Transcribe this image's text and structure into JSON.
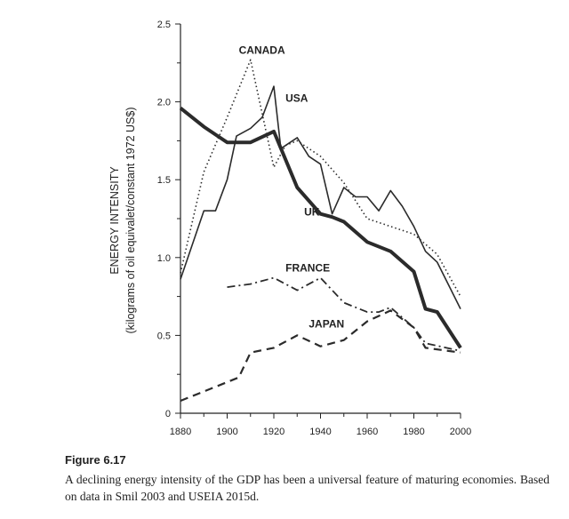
{
  "chart_data": {
    "type": "line",
    "ylabel_line1": "ENERGY INTENSITY",
    "ylabel_line2": "(kilograms of oil equivalet/constant 1972 US$)",
    "xlim": [
      1880,
      2000
    ],
    "ylim": [
      0,
      2.5
    ],
    "xticks": [
      "1880",
      "1900",
      "1920",
      "1940",
      "1960",
      "1980",
      "2000"
    ],
    "yticks": [
      "0",
      "0.5",
      "1.0",
      "1.5",
      "2.0",
      "2.5"
    ],
    "grid": false,
    "series": [
      {
        "name": "CANADA",
        "style": "dotted",
        "x": [
          1880,
          1890,
          1900,
          1910,
          1920,
          1925,
          1930,
          1940,
          1950,
          1960,
          1970,
          1980,
          1990,
          2000
        ],
        "y": [
          0.9,
          1.55,
          1.9,
          2.27,
          1.58,
          1.72,
          1.75,
          1.65,
          1.48,
          1.25,
          1.2,
          1.15,
          1.02,
          0.75
        ]
      },
      {
        "name": "USA",
        "style": "solid-thin",
        "x": [
          1880,
          1890,
          1895,
          1900,
          1904,
          1910,
          1915,
          1920,
          1923,
          1930,
          1935,
          1940,
          1945,
          1950,
          1955,
          1960,
          1965,
          1970,
          1975,
          1980,
          1985,
          1990,
          2000
        ],
        "y": [
          0.86,
          1.3,
          1.3,
          1.5,
          1.78,
          1.83,
          1.9,
          2.1,
          1.7,
          1.77,
          1.65,
          1.6,
          1.28,
          1.45,
          1.39,
          1.39,
          1.3,
          1.43,
          1.33,
          1.2,
          1.04,
          0.97,
          0.67
        ]
      },
      {
        "name": "UK",
        "style": "solid-thick",
        "x": [
          1880,
          1890,
          1900,
          1910,
          1920,
          1930,
          1940,
          1945,
          1950,
          1960,
          1970,
          1980,
          1985,
          1990,
          2000
        ],
        "y": [
          1.96,
          1.84,
          1.74,
          1.74,
          1.81,
          1.45,
          1.28,
          1.26,
          1.23,
          1.1,
          1.04,
          0.91,
          0.67,
          0.65,
          0.42
        ]
      },
      {
        "name": "FRANCE",
        "style": "dashdot",
        "x": [
          1900,
          1910,
          1920,
          1930,
          1940,
          1950,
          1960,
          1965,
          1970,
          1980,
          1985,
          2000
        ],
        "y": [
          0.81,
          0.83,
          0.87,
          0.79,
          0.87,
          0.71,
          0.65,
          0.65,
          0.68,
          0.55,
          0.45,
          0.4
        ]
      },
      {
        "name": "JAPAN",
        "style": "dashed",
        "x": [
          1880,
          1890,
          1900,
          1905,
          1910,
          1920,
          1930,
          1940,
          1950,
          1960,
          1970,
          1980,
          1985,
          2000
        ],
        "y": [
          0.08,
          0.14,
          0.2,
          0.23,
          0.39,
          0.42,
          0.5,
          0.43,
          0.47,
          0.59,
          0.66,
          0.55,
          0.42,
          0.39
        ]
      }
    ],
    "annotations": [
      "CANADA",
      "USA",
      "UK",
      "FRANCE",
      "JAPAN"
    ]
  },
  "caption": {
    "label": "Figure 6.17",
    "text": "A declining energy intensity of the GDP has been a universal feature of maturing economies. Based on data in Smil 2003 and USEIA 2015d."
  }
}
